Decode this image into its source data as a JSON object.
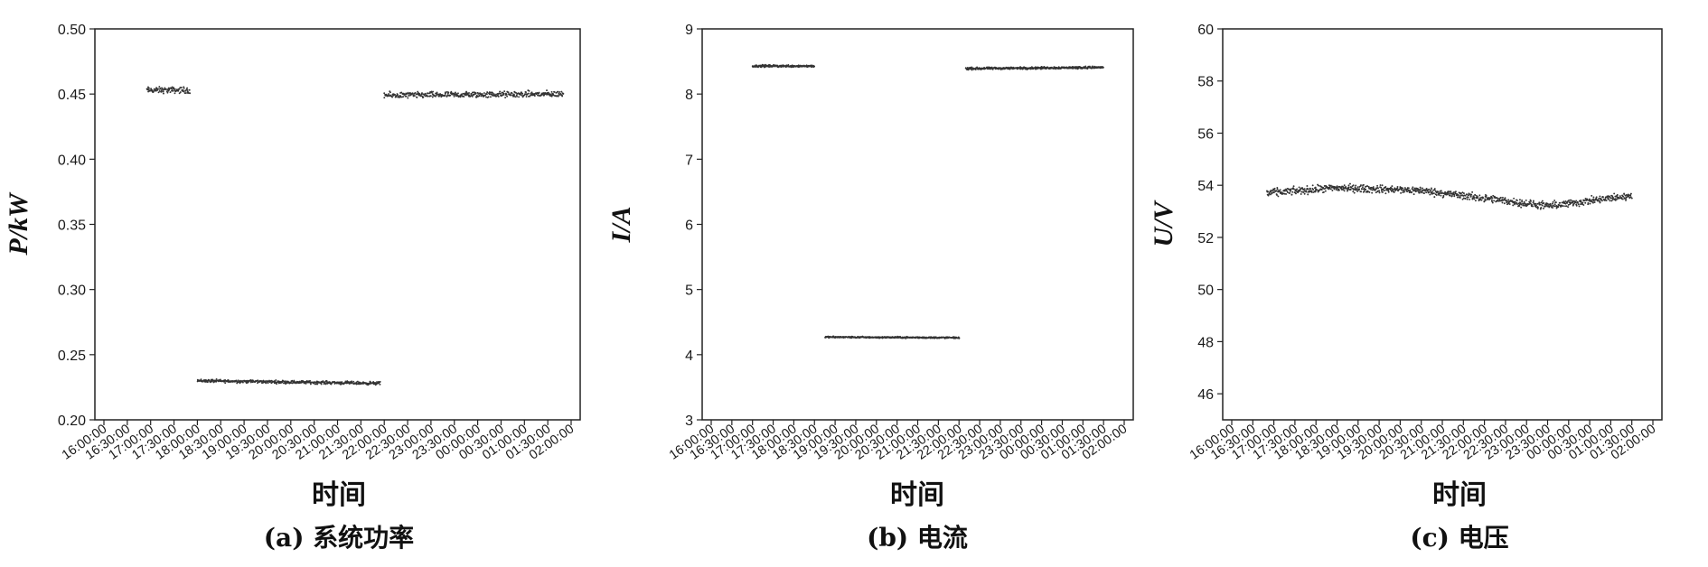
{
  "chart_data": [
    {
      "type": "scatter",
      "caption": "(a) 系统功率",
      "xlabel": "时间",
      "ylabel": "P/kW",
      "ylim": [
        0.2,
        0.5
      ],
      "y_ticks": [
        "0.20",
        "0.25",
        "0.30",
        "0.35",
        "0.40",
        "0.45",
        "0.50"
      ],
      "x_ticks": [
        "16:00:00",
        "16:30:00",
        "17:00:00",
        "17:30:00",
        "18:00:00",
        "18:30:00",
        "19:00:00",
        "19:30:00",
        "20:00:00",
        "20:30:00",
        "21:00:00",
        "21:30:00",
        "22:00:00",
        "22:30:00",
        "23:00:00",
        "23:30:00",
        "00:00:00",
        "00:30:00",
        "01:00:00",
        "01:30:00",
        "02:00:00"
      ],
      "segments": [
        {
          "x_start": "16:55:00",
          "x_end": "17:50:00",
          "y_start": 0.453,
          "y_end": 0.453,
          "spread": 0.004
        },
        {
          "x_start": "18:00:00",
          "x_end": "21:55:00",
          "y_start": 0.23,
          "y_end": 0.228,
          "spread": 0.002
        },
        {
          "x_start": "22:00:00",
          "x_end": "01:50:00",
          "y_start": 0.449,
          "y_end": 0.45,
          "spread": 0.004
        }
      ]
    },
    {
      "type": "scatter",
      "caption": "(b) 电流",
      "xlabel": "时间",
      "ylabel": "I/A",
      "ylim": [
        3,
        9
      ],
      "y_ticks": [
        "3",
        "4",
        "5",
        "6",
        "7",
        "8",
        "9"
      ],
      "x_ticks": [
        "16:00:00",
        "16:30:00",
        "17:00:00",
        "17:30:00",
        "18:00:00",
        "18:30:00",
        "19:00:00",
        "19:30:00",
        "20:00:00",
        "20:30:00",
        "21:00:00",
        "21:30:00",
        "22:00:00",
        "22:30:00",
        "23:00:00",
        "23:30:00",
        "00:00:00",
        "00:30:00",
        "01:00:00",
        "01:30:00",
        "02:00:00"
      ],
      "segments": [
        {
          "x_start": "17:00:00",
          "x_end": "18:30:00",
          "y_start": 8.43,
          "y_end": 8.43,
          "spread": 0.03
        },
        {
          "x_start": "18:45:00",
          "x_end": "22:00:00",
          "y_start": 4.27,
          "y_end": 4.26,
          "spread": 0.02
        },
        {
          "x_start": "22:10:00",
          "x_end": "01:30:00",
          "y_start": 8.39,
          "y_end": 8.41,
          "spread": 0.03
        }
      ]
    },
    {
      "type": "scatter",
      "caption": "(c) 电压",
      "xlabel": "时间",
      "ylabel": "U/V",
      "ylim": [
        45,
        60
      ],
      "y_ticks": [
        "46",
        "48",
        "50",
        "52",
        "54",
        "56",
        "58",
        "60"
      ],
      "x_ticks": [
        "16:00:00",
        "16:30:00",
        "17:00:00",
        "17:30:00",
        "18:00:00",
        "18:30:00",
        "19:00:00",
        "19:30:00",
        "20:00:00",
        "20:30:00",
        "21:00:00",
        "21:30:00",
        "22:00:00",
        "22:30:00",
        "23:00:00",
        "23:30:00",
        "00:00:00",
        "00:30:00",
        "01:00:00",
        "01:30:00",
        "02:00:00"
      ],
      "segments": [
        {
          "x_start": "16:50:00",
          "x_end": "18:30:00",
          "y_start": 53.7,
          "y_end": 53.9,
          "spread": 0.25
        },
        {
          "x_start": "18:30:00",
          "x_end": "20:30:00",
          "y_start": 53.9,
          "y_end": 53.8,
          "spread": 0.25
        },
        {
          "x_start": "20:30:00",
          "x_end": "23:30:00",
          "y_start": 53.8,
          "y_end": 53.2,
          "spread": 0.25
        },
        {
          "x_start": "23:30:00",
          "x_end": "01:30:00",
          "y_start": 53.2,
          "y_end": 53.6,
          "spread": 0.25
        }
      ]
    }
  ]
}
